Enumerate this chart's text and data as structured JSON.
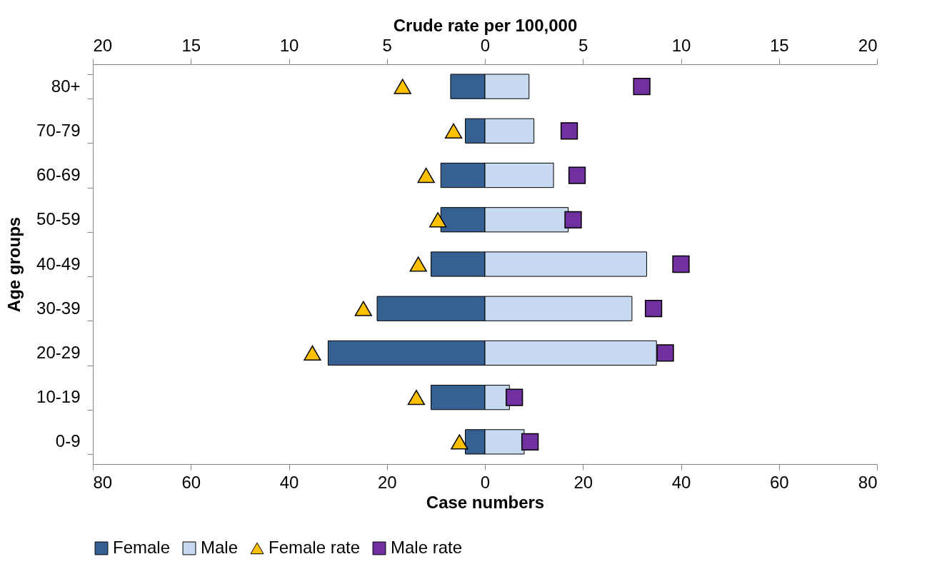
{
  "chart_data": {
    "type": "bar",
    "orientation": "horizontal",
    "stacked": true,
    "categories": [
      "80+",
      "70-79",
      "60-69",
      "50-59",
      "40-49",
      "30-39",
      "20-29",
      "10-19",
      "0-9"
    ],
    "series": [
      {
        "name": "Female",
        "color": "#376092",
        "values": [
          -7,
          -4,
          -9,
          -9,
          -11,
          -22,
          -32,
          -11,
          -4
        ]
      },
      {
        "name": "Male",
        "color": "#c6d9f0",
        "values": [
          9,
          10,
          14,
          17,
          33,
          30,
          35,
          5,
          8
        ]
      },
      {
        "name": "Female rate",
        "type": "scatter",
        "axis": "x2",
        "marker": "triangle",
        "color": "#ffc000",
        "values": [
          -4.2,
          -1.6,
          -3.0,
          -2.4,
          -3.4,
          -6.2,
          -8.8,
          -3.5,
          -1.3
        ]
      },
      {
        "name": "Male rate",
        "type": "scatter",
        "axis": "x2",
        "marker": "square",
        "color": "#7030a0",
        "values": [
          8.0,
          4.3,
          4.7,
          4.5,
          10.0,
          8.6,
          9.2,
          1.5,
          2.3
        ]
      }
    ],
    "xlabel": "Case numbers",
    "ylabel": "Age groups",
    "x2label": "Crude rate per 100,000",
    "xlim": [
      -80,
      80
    ],
    "xticks": [
      {
        "value": -80,
        "label": "80"
      },
      {
        "value": -60,
        "label": "60"
      },
      {
        "value": -40,
        "label": "40"
      },
      {
        "value": -20,
        "label": "20"
      },
      0,
      20,
      40,
      60,
      80
    ],
    "x2lim": [
      -20,
      20
    ],
    "x2ticks": [
      {
        "value": -20,
        "label": "20"
      },
      {
        "value": -15,
        "label": "15"
      },
      {
        "value": -10,
        "label": "10"
      },
      {
        "value": -5,
        "label": "5"
      },
      0,
      5,
      10,
      15,
      20
    ],
    "legend": "bottom",
    "grid": false
  }
}
